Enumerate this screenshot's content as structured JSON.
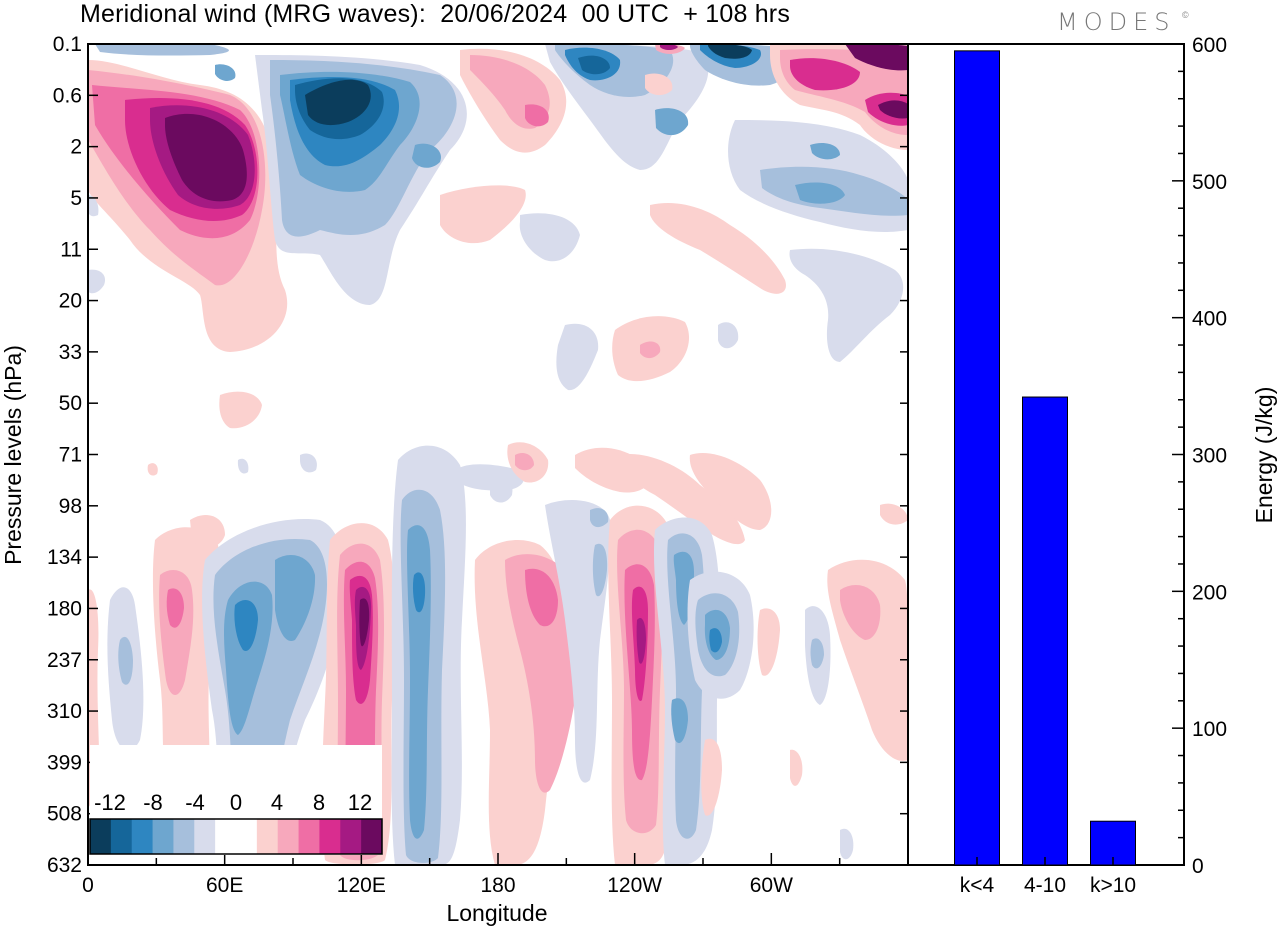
{
  "title": "Meridional wind (MRG waves):  20/06/2024  00 UTC  + 108 hrs",
  "logo": "MODES",
  "logo_mark": "©",
  "chart_data": [
    {
      "type": "heatmap",
      "variable": "Meridional wind",
      "xlabel": "Longitude",
      "ylabel": "Pressure levels (hPa)",
      "x_ticks": [
        "0",
        "60E",
        "120E",
        "180",
        "120W",
        "60W"
      ],
      "x_tick_values": [
        0,
        60,
        120,
        180,
        240,
        300
      ],
      "xlim": [
        0,
        360
      ],
      "y_ticks": [
        "0.1",
        "0.6",
        "2",
        "5",
        "11",
        "20",
        "33",
        "50",
        "71",
        "98",
        "134",
        "180",
        "237",
        "310",
        "399",
        "508",
        "632"
      ],
      "y_axis": "pressure levels, top to bottom",
      "colorbar": {
        "labels": [
          "-12",
          "-8",
          "-4",
          "0",
          "4",
          "8",
          "12"
        ],
        "colors": [
          "#0b3d5c",
          "#15669a",
          "#2e86c1",
          "#6ea6cf",
          "#a6bfdc",
          "#d8dcec",
          "#ffffff",
          "#ffffff",
          "#fbd1cf",
          "#f7a8bc",
          "#ef6ea5",
          "#d92d8f",
          "#a51a83",
          "#6b0a5f"
        ]
      },
      "colors": {
        "blue_weak": "#d8dcec",
        "blue_1": "#a6bfdc",
        "blue_2": "#6ea6cf",
        "blue_3": "#2e86c1",
        "blue_4": "#15669a",
        "blue_5": "#0b3d5c",
        "pink_weak": "#fbd1cf",
        "pink_1": "#f7a8bc",
        "pink_2": "#ef6ea5",
        "pink_3": "#d92d8f",
        "pink_4": "#a51a83",
        "pink_5": "#6b0a5f"
      }
    },
    {
      "type": "bar",
      "categories": [
        "k<4",
        "4-10",
        "k>10"
      ],
      "values": [
        595,
        342,
        32
      ],
      "ylabel": "Energy (J/kg)",
      "ylim": [
        0,
        600
      ],
      "y_ticks": [
        0,
        100,
        200,
        300,
        400,
        500,
        600
      ],
      "bar_color": "#0000ff"
    }
  ]
}
